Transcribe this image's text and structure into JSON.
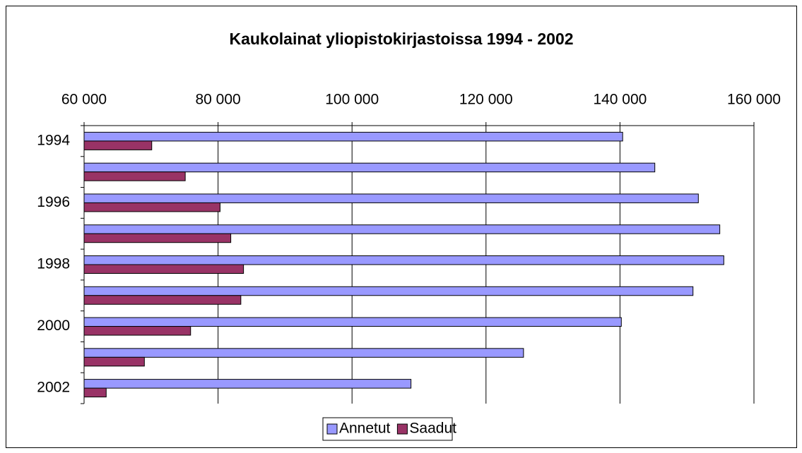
{
  "chart_data": {
    "type": "barh",
    "title": "Kaukolainat yliopistokirjastoissa 1994 - 2002",
    "categories": [
      "1994",
      null,
      "1996",
      null,
      "1998",
      null,
      "2000",
      null,
      "2002"
    ],
    "series": [
      {
        "name": "Annetut",
        "color": "#9999ff",
        "values": [
          140400,
          145200,
          151700,
          154900,
          155500,
          150900,
          140200,
          125600,
          108800
        ]
      },
      {
        "name": "Saadut",
        "color": "#993366",
        "values": [
          70100,
          75100,
          80300,
          81900,
          83800,
          83400,
          75900,
          69000,
          63300
        ]
      }
    ],
    "xlim": [
      60000,
      160000
    ],
    "xticks": [
      {
        "value": 60000,
        "label": "60 000"
      },
      {
        "value": 80000,
        "label": "80 000"
      },
      {
        "value": 100000,
        "label": "100 000"
      },
      {
        "value": 120000,
        "label": "120 000"
      },
      {
        "value": 140000,
        "label": "140 000"
      },
      {
        "value": 160000,
        "label": "160 000"
      }
    ],
    "grid": true,
    "legend": "bottom"
  }
}
